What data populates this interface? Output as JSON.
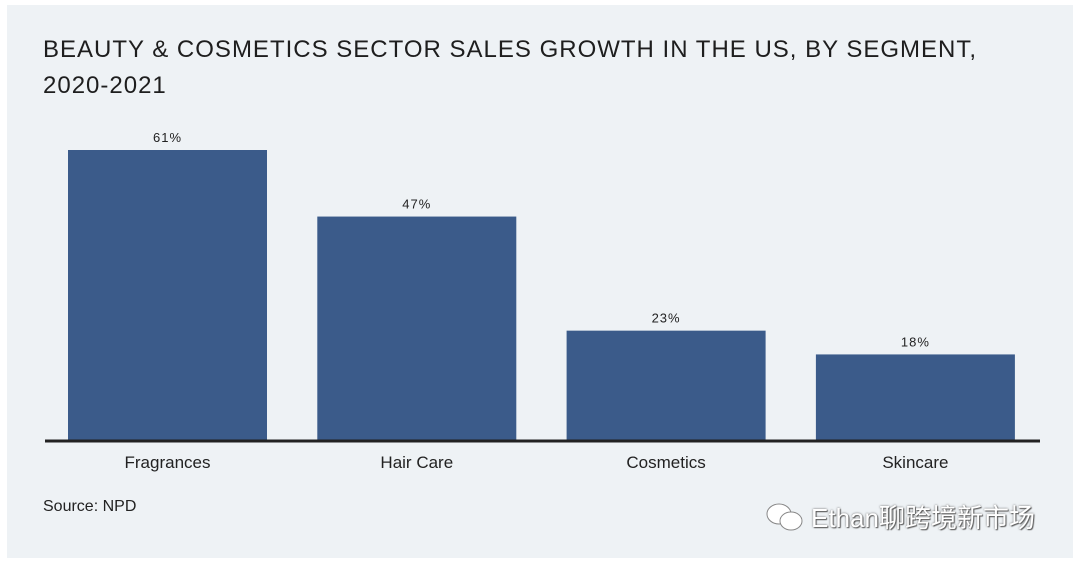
{
  "chart_data": {
    "type": "bar",
    "title": "BEAUTY & COSMETICS SECTOR SALES GROWTH IN THE US, BY SEGMENT, 2020-2021",
    "categories": [
      "Fragrances",
      "Hair Care",
      "Cosmetics",
      "Skincare"
    ],
    "values": [
      61,
      47,
      23,
      18
    ],
    "data_labels": [
      "61%",
      "47%",
      "23%",
      "18%"
    ],
    "xlabel": "",
    "ylabel": "",
    "ylim": [
      0,
      61
    ],
    "grid": false,
    "bar_color": "#3b5b8a"
  },
  "source": "Source: NPD",
  "watermark": "Ethan聊跨境新市场"
}
